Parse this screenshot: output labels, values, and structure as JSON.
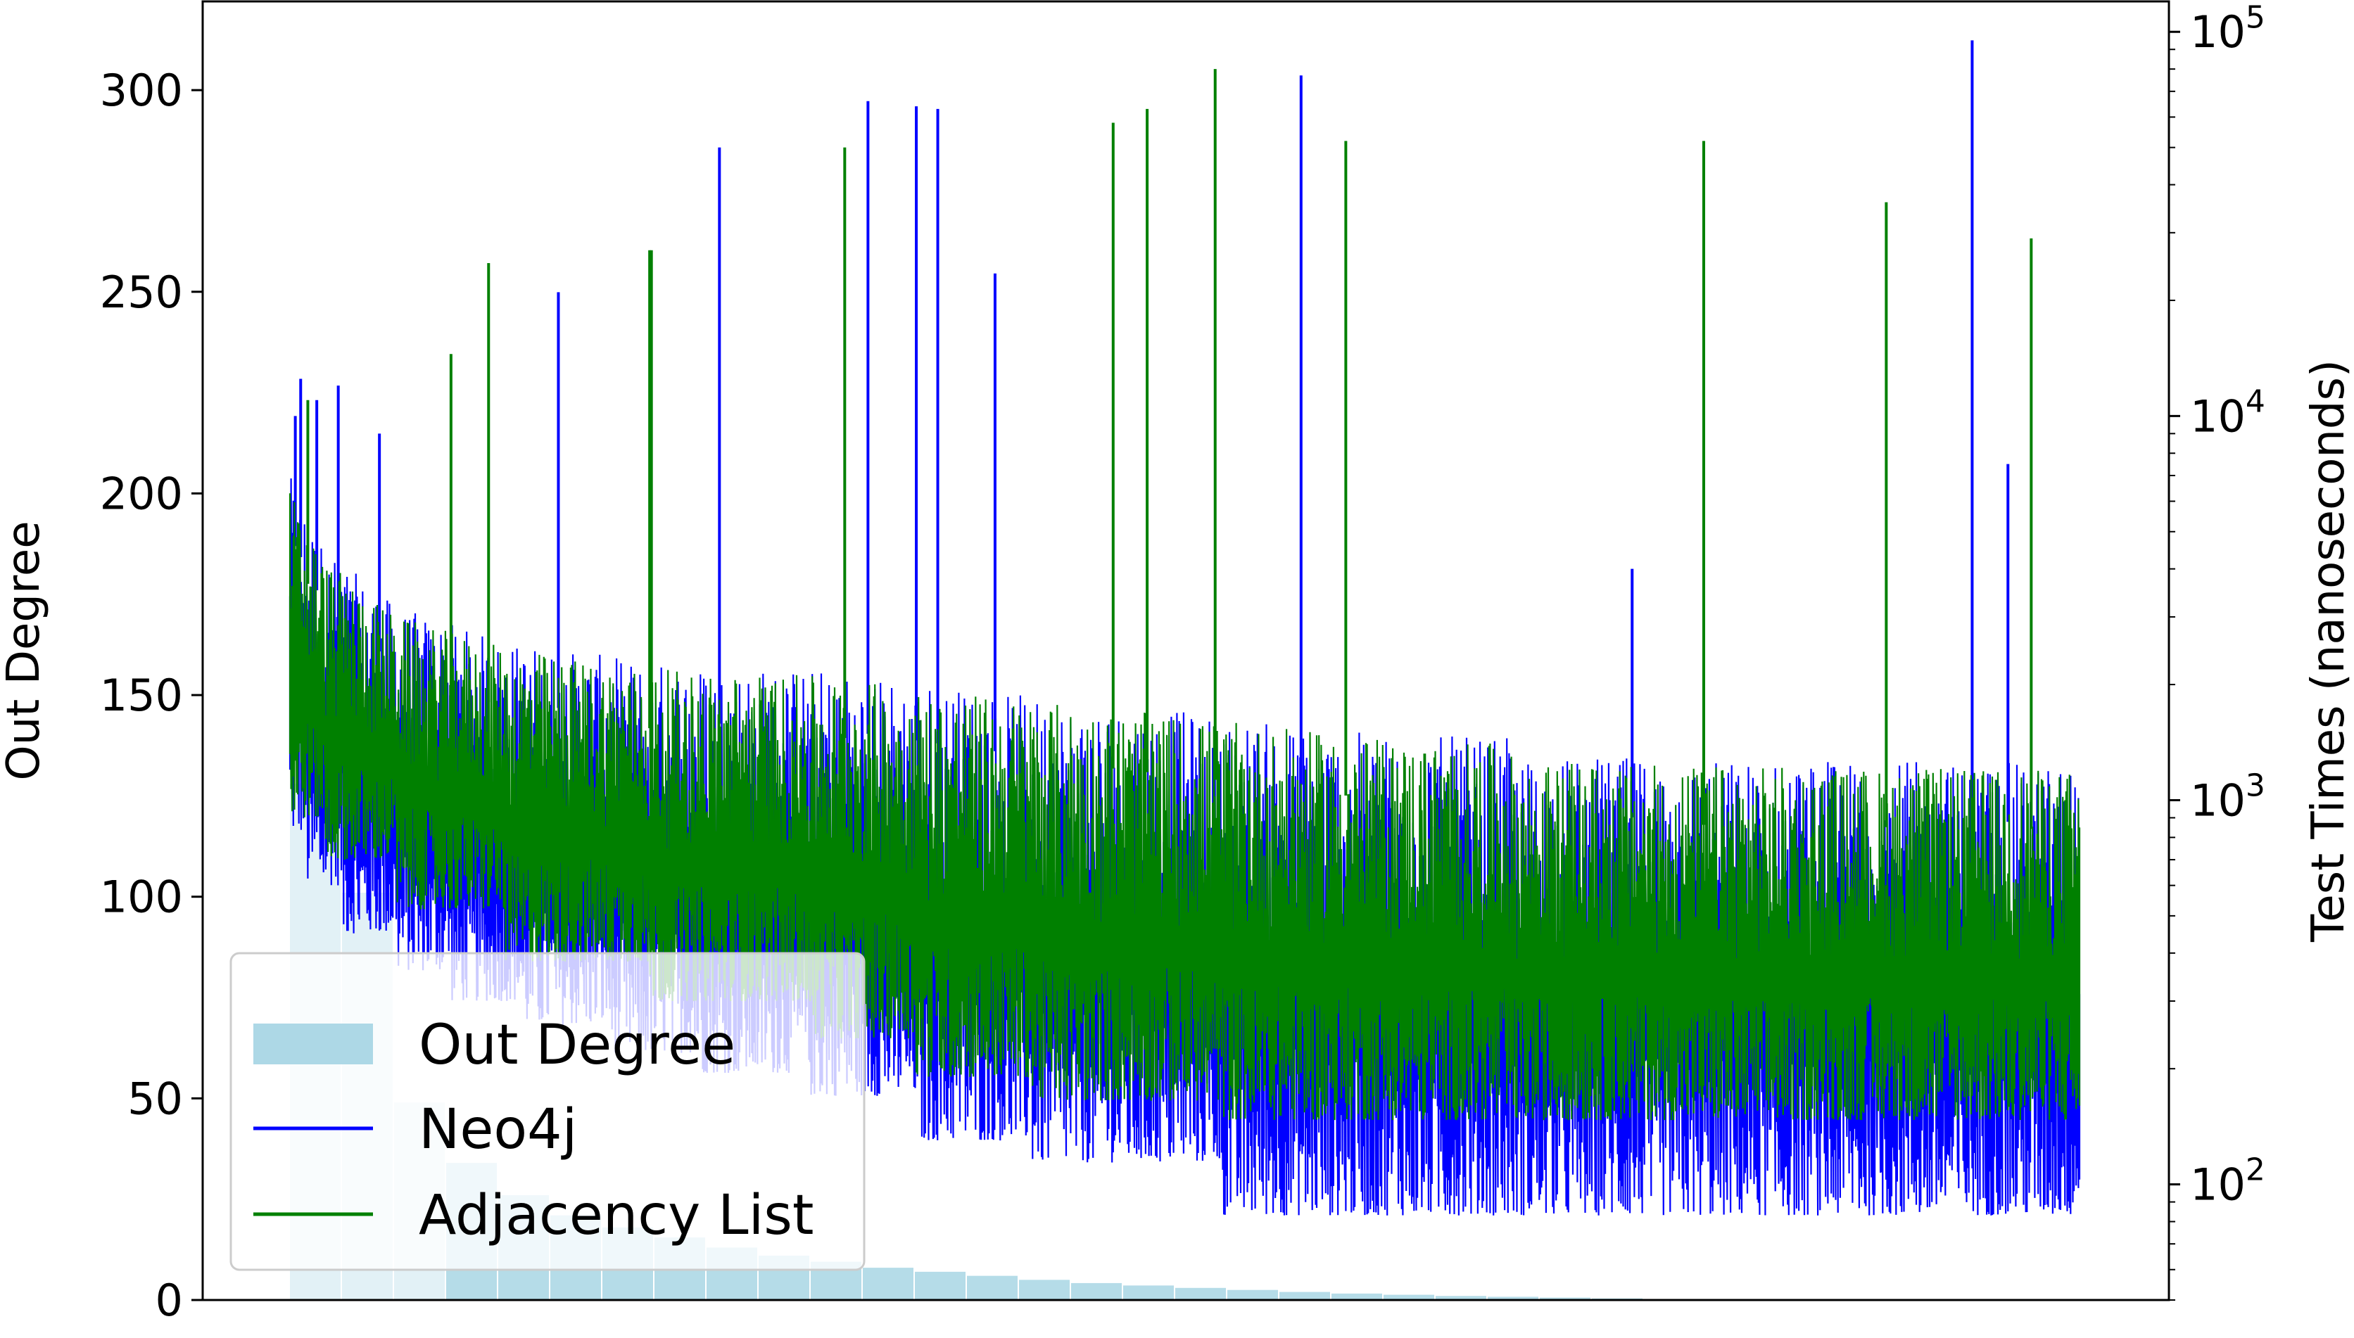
{
  "chart_data": {
    "type": "line",
    "title": "",
    "xlabel": "",
    "ylabel": "Out Degree",
    "y2label": "Test Times (nanoseconds)",
    "ylim": [
      0,
      322
    ],
    "y2lim": [
      50,
      120000
    ],
    "y2scale": "log",
    "yticks": [
      0,
      50,
      100,
      150,
      200,
      250,
      300
    ],
    "y2ticks": [
      {
        "value": 100,
        "base": "10",
        "exp": "2"
      },
      {
        "value": 1000,
        "base": "10",
        "exp": "3"
      },
      {
        "value": 10000,
        "base": "10",
        "exp": "4"
      },
      {
        "value": 100000,
        "base": "10",
        "exp": "5"
      }
    ],
    "grid": false,
    "legend_position": "lower-left",
    "legend": [
      {
        "label": "Out Degree",
        "kind": "patch",
        "color": "#add8e6"
      },
      {
        "label": "Neo4j",
        "kind": "line",
        "color": "#0000ff"
      },
      {
        "label": "Adjacency List",
        "kind": "line",
        "color": "#008000"
      }
    ],
    "out_degree_bars": {
      "axis": "left",
      "color": "#add8e6",
      "values": [
        128,
        101,
        49,
        34,
        26,
        21,
        18,
        15.5,
        13,
        11,
        9.5,
        8,
        7,
        6,
        5,
        4.2,
        3.6,
        3,
        2.5,
        2,
        1.6,
        1.3,
        1,
        0.8,
        0.6,
        0.4
      ]
    },
    "series": [
      {
        "name": "Neo4j",
        "color": "#0000ff",
        "axis": "right",
        "floor_steps": [
          {
            "x": 0.0,
            "value": 820
          },
          {
            "x": 0.01,
            "value": 600
          },
          {
            "x": 0.03,
            "value": 450
          },
          {
            "x": 0.06,
            "value": 360
          },
          {
            "x": 0.09,
            "value": 300
          },
          {
            "x": 0.13,
            "value": 260
          },
          {
            "x": 0.18,
            "value": 220
          },
          {
            "x": 0.23,
            "value": 195
          },
          {
            "x": 0.29,
            "value": 170
          },
          {
            "x": 0.35,
            "value": 130
          },
          {
            "x": 0.415,
            "value": 114
          },
          {
            "x": 0.52,
            "value": 83
          },
          {
            "x": 0.99,
            "value": 83
          }
        ],
        "upper_band": [
          {
            "x": 0.0,
            "value": 7000
          },
          {
            "x": 0.02,
            "value": 4500
          },
          {
            "x": 0.06,
            "value": 3200
          },
          {
            "x": 0.12,
            "value": 2600
          },
          {
            "x": 0.2,
            "value": 2300
          },
          {
            "x": 0.3,
            "value": 2200
          },
          {
            "x": 0.4,
            "value": 1900
          },
          {
            "x": 0.5,
            "value": 1700
          },
          {
            "x": 0.6,
            "value": 1500
          },
          {
            "x": 0.68,
            "value": 1450
          },
          {
            "x": 0.685,
            "value": 1300
          },
          {
            "x": 0.99,
            "value": 1250
          }
        ],
        "spikes": [
          {
            "x": 0.003,
            "value": 10000
          },
          {
            "x": 0.006,
            "value": 12500
          },
          {
            "x": 0.015,
            "value": 11000
          },
          {
            "x": 0.027,
            "value": 12000
          },
          {
            "x": 0.05,
            "value": 9000
          },
          {
            "x": 0.15,
            "value": 21000
          },
          {
            "x": 0.24,
            "value": 50000
          },
          {
            "x": 0.323,
            "value": 66000
          },
          {
            "x": 0.35,
            "value": 64000
          },
          {
            "x": 0.362,
            "value": 63000
          },
          {
            "x": 0.394,
            "value": 23500
          },
          {
            "x": 0.565,
            "value": 77000
          },
          {
            "x": 0.75,
            "value": 4000
          },
          {
            "x": 0.94,
            "value": 95000
          },
          {
            "x": 0.96,
            "value": 7500
          }
        ]
      },
      {
        "name": "Adjacency List",
        "color": "#008000",
        "axis": "right",
        "floor_steps": [
          {
            "x": 0.0,
            "value": 900
          },
          {
            "x": 0.02,
            "value": 700
          },
          {
            "x": 0.06,
            "value": 520
          },
          {
            "x": 0.12,
            "value": 380
          },
          {
            "x": 0.2,
            "value": 300
          },
          {
            "x": 0.29,
            "value": 240
          },
          {
            "x": 0.35,
            "value": 190
          },
          {
            "x": 0.415,
            "value": 165
          },
          {
            "x": 0.52,
            "value": 147
          },
          {
            "x": 0.99,
            "value": 145
          }
        ],
        "upper_band": [
          {
            "x": 0.0,
            "value": 6500
          },
          {
            "x": 0.02,
            "value": 4200
          },
          {
            "x": 0.06,
            "value": 3000
          },
          {
            "x": 0.12,
            "value": 2500
          },
          {
            "x": 0.2,
            "value": 2200
          },
          {
            "x": 0.3,
            "value": 2100
          },
          {
            "x": 0.4,
            "value": 1850
          },
          {
            "x": 0.5,
            "value": 1650
          },
          {
            "x": 0.6,
            "value": 1450
          },
          {
            "x": 0.68,
            "value": 1400
          },
          {
            "x": 0.685,
            "value": 1250
          },
          {
            "x": 0.99,
            "value": 1200
          }
        ],
        "spikes": [
          {
            "x": 0.01,
            "value": 11000
          },
          {
            "x": 0.09,
            "value": 14500
          },
          {
            "x": 0.111,
            "value": 25000
          },
          {
            "x": 0.201,
            "value": 27000
          },
          {
            "x": 0.202,
            "value": 27000
          },
          {
            "x": 0.31,
            "value": 50000
          },
          {
            "x": 0.46,
            "value": 58000
          },
          {
            "x": 0.479,
            "value": 63000
          },
          {
            "x": 0.517,
            "value": 80000
          },
          {
            "x": 0.59,
            "value": 52000
          },
          {
            "x": 0.79,
            "value": 52000
          },
          {
            "x": 0.892,
            "value": 36000
          },
          {
            "x": 0.973,
            "value": 29000
          }
        ]
      }
    ]
  }
}
